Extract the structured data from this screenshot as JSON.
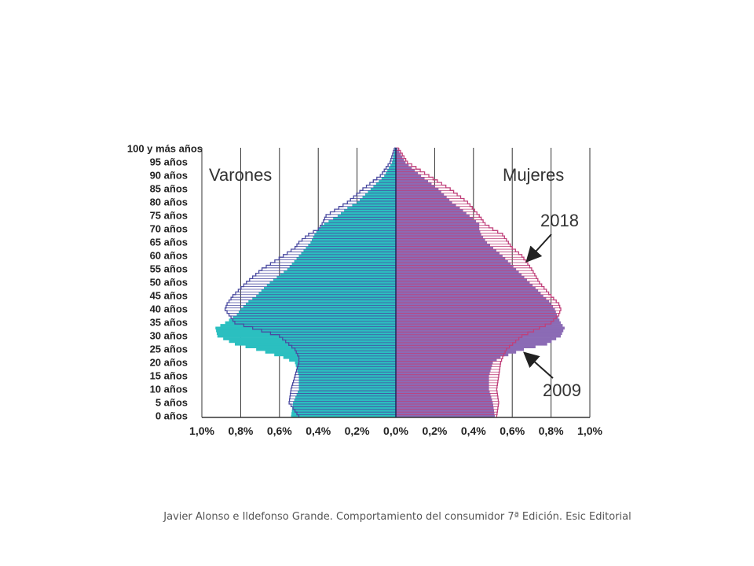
{
  "chart_data": {
    "type": "population-pyramid",
    "left_title": "Varones",
    "right_title": "Mujeres",
    "x_tick_labels": [
      "1,0%",
      "0,8%",
      "0,6%",
      "0,4%",
      "0,2%",
      "0,0%",
      "0,2%",
      "0,4%",
      "0,6%",
      "0,8%",
      "1,0%"
    ],
    "y_tick_labels": [
      "0 años",
      "5 años",
      "10 años",
      "15 años",
      "20 años",
      "25 años",
      "30 años",
      "35 años",
      "40 años",
      "45 años",
      "50 años",
      "55 años",
      "60 años",
      "65 años",
      "70 años",
      "75 años",
      "80 años",
      "85 años",
      "90 años",
      "95 años",
      "100 y más años"
    ],
    "xlim": [
      -1.0,
      1.0
    ],
    "age_range": [
      0,
      100
    ],
    "colors": {
      "men": "#2bbfc0",
      "women": "#8b6bb5",
      "men_outline": "#4a4aa0",
      "women_outline": "#c0407a"
    },
    "series": [
      {
        "name": "2009",
        "ages": [
          0,
          5,
          10,
          15,
          20,
          22,
          25,
          27,
          30,
          33,
          35,
          38,
          40,
          43,
          45,
          48,
          50,
          55,
          60,
          65,
          68,
          70,
          72,
          75,
          78,
          80,
          85,
          90,
          95,
          100
        ],
        "men": [
          0.54,
          0.53,
          0.5,
          0.5,
          0.52,
          0.58,
          0.72,
          0.83,
          0.92,
          0.93,
          0.88,
          0.82,
          0.8,
          0.76,
          0.72,
          0.68,
          0.65,
          0.56,
          0.5,
          0.44,
          0.42,
          0.4,
          0.37,
          0.3,
          0.25,
          0.2,
          0.13,
          0.06,
          0.02,
          0.005
        ],
        "women": [
          0.51,
          0.5,
          0.48,
          0.48,
          0.5,
          0.54,
          0.66,
          0.78,
          0.85,
          0.87,
          0.85,
          0.83,
          0.82,
          0.79,
          0.76,
          0.72,
          0.69,
          0.62,
          0.55,
          0.47,
          0.44,
          0.43,
          0.43,
          0.38,
          0.33,
          0.29,
          0.22,
          0.13,
          0.05,
          0.01
        ]
      },
      {
        "name": "2018",
        "ages": [
          0,
          5,
          10,
          15,
          20,
          22,
          25,
          30,
          35,
          38,
          40,
          42,
          45,
          50,
          55,
          60,
          63,
          65,
          68,
          70,
          72,
          75,
          80,
          85,
          90,
          95,
          100
        ],
        "men": [
          0.5,
          0.55,
          0.54,
          0.52,
          0.5,
          0.5,
          0.52,
          0.6,
          0.83,
          0.86,
          0.88,
          0.87,
          0.84,
          0.77,
          0.69,
          0.58,
          0.52,
          0.5,
          0.45,
          0.4,
          0.38,
          0.36,
          0.25,
          0.17,
          0.08,
          0.03,
          0.008
        ],
        "women": [
          0.52,
          0.53,
          0.52,
          0.53,
          0.54,
          0.55,
          0.57,
          0.65,
          0.8,
          0.84,
          0.85,
          0.84,
          0.8,
          0.74,
          0.7,
          0.65,
          0.6,
          0.58,
          0.55,
          0.5,
          0.46,
          0.43,
          0.37,
          0.28,
          0.17,
          0.06,
          0.015
        ]
      }
    ]
  },
  "footer": {
    "caption": "Javier Alonso e Ildefonso Grande. Comportamiento del consumidor 7ª Edición. Esic Editorial"
  }
}
